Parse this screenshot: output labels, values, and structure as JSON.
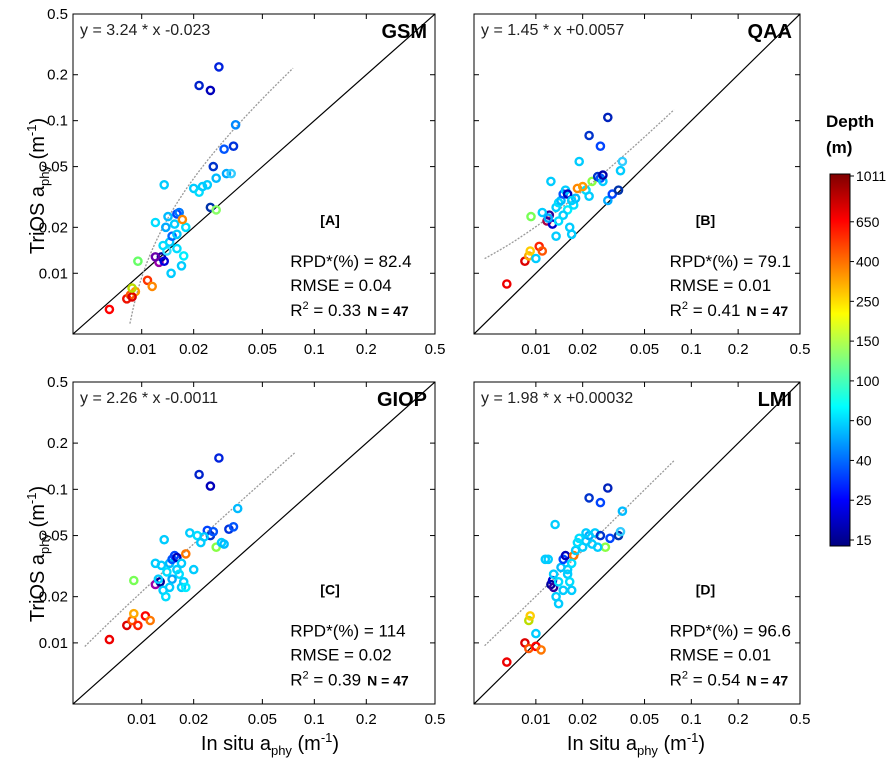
{
  "figure": {
    "y_axis_label": "TriOS a",
    "y_axis_sub": "phy",
    "x_axis_label": "In situ a",
    "x_axis_sub": "phy",
    "axis_unit_open": "(m",
    "axis_unit_exp": "-1",
    "axis_unit_close": ")",
    "colorbar_title_line1": "Depth",
    "colorbar_title_line2": "(m)",
    "colorbar_ticks": [
      "1011",
      "650",
      "400",
      "250",
      "150",
      "100",
      "60",
      "40",
      "25",
      "15"
    ],
    "colors": {
      "one_to_one": "#000000",
      "fit_line": "#999999",
      "colorbar_stops": [
        "#00007f",
        "#0000ff",
        "#007fff",
        "#00ffff",
        "#7fff7f",
        "#ffff00",
        "#ff7f00",
        "#ff0000",
        "#7f0000"
      ]
    }
  },
  "chart_data": [
    {
      "type": "scatter",
      "title": "GSM",
      "panel_label": "[A]",
      "equation": "y = 3.24 * x -0.023",
      "slope": 3.24,
      "intercept": -0.023,
      "xscale": "log",
      "yscale": "log",
      "xlim": [
        0.004,
        0.5
      ],
      "ylim": [
        0.004,
        0.5
      ],
      "x_ticks": [
        "0.01",
        "0.02",
        "0.05",
        "0.1",
        "0.2",
        "0.5"
      ],
      "y_ticks": [
        "0.5",
        "0.2",
        "0.1",
        "0.05",
        "0.02",
        "0.01"
      ],
      "stats": {
        "rpd_label": "RPD*(%) = 82.4",
        "rmse_label": "RMSE = 0.04",
        "r2_prefix": "R",
        "r2_sup": "2",
        "r2_value": " = 0.33",
        "n_label": "N = 47"
      },
      "points": [
        [
          0.0065,
          0.0058,
          "#ff0000"
        ],
        [
          0.0082,
          0.0068,
          "#ee1100"
        ],
        [
          0.0086,
          0.0072,
          "#ff5500"
        ],
        [
          0.0092,
          0.0076,
          "#ff9900"
        ],
        [
          0.0088,
          0.007,
          "#dd0000"
        ],
        [
          0.0108,
          0.009,
          "#ff3300"
        ],
        [
          0.0115,
          0.0082,
          "#ff8800"
        ],
        [
          0.0088,
          0.008,
          "#bbdd00"
        ],
        [
          0.0095,
          0.012,
          "#66ff66"
        ],
        [
          0.0126,
          0.0118,
          "#9900aa"
        ],
        [
          0.013,
          0.0128,
          "#000099"
        ],
        [
          0.0135,
          0.012,
          "#0000dd"
        ],
        [
          0.014,
          0.014,
          "#33ddff"
        ],
        [
          0.0145,
          0.016,
          "#00ccff"
        ],
        [
          0.0133,
          0.0152,
          "#00ddff"
        ],
        [
          0.015,
          0.0175,
          "#0066ff"
        ],
        [
          0.0138,
          0.02,
          "#00aaff"
        ],
        [
          0.0155,
          0.021,
          "#00ccff"
        ],
        [
          0.0142,
          0.0235,
          "#00bbff"
        ],
        [
          0.016,
          0.0245,
          "#0044ff"
        ],
        [
          0.0165,
          0.025,
          "#0077ff"
        ],
        [
          0.012,
          0.0215,
          "#00ddff"
        ],
        [
          0.0148,
          0.01,
          "#00ccff"
        ],
        [
          0.017,
          0.0112,
          "#00ccff"
        ],
        [
          0.0175,
          0.013,
          "#00eeff"
        ],
        [
          0.016,
          0.018,
          "#00ccff"
        ],
        [
          0.018,
          0.02,
          "#00ddff"
        ],
        [
          0.0172,
          0.0225,
          "#ff8800"
        ],
        [
          0.0135,
          0.038,
          "#00ccff"
        ],
        [
          0.02,
          0.036,
          "#00ccff"
        ],
        [
          0.0215,
          0.034,
          "#00ddff"
        ],
        [
          0.0225,
          0.037,
          "#00ccff"
        ],
        [
          0.024,
          0.038,
          "#00ccff"
        ],
        [
          0.025,
          0.027,
          "#0033aa"
        ],
        [
          0.027,
          0.026,
          "#88ff66"
        ],
        [
          0.027,
          0.042,
          "#00bbff"
        ],
        [
          0.031,
          0.045,
          "#00aaff"
        ],
        [
          0.026,
          0.05,
          "#0033cc"
        ],
        [
          0.03,
          0.065,
          "#0055ff"
        ],
        [
          0.034,
          0.068,
          "#0033dd"
        ],
        [
          0.033,
          0.045,
          "#33ccff"
        ],
        [
          0.035,
          0.094,
          "#0088ff"
        ],
        [
          0.0215,
          0.17,
          "#0022cc"
        ],
        [
          0.025,
          0.158,
          "#0000bb"
        ],
        [
          0.028,
          0.225,
          "#0022dd"
        ],
        [
          0.012,
          0.0128,
          "#6600aa"
        ],
        [
          0.016,
          0.0145,
          "#00ddff"
        ]
      ]
    },
    {
      "type": "scatter",
      "title": "QAA",
      "panel_label": "[B]",
      "equation": "y = 1.45 * x +0.0057",
      "slope": 1.45,
      "intercept": 0.0057,
      "xscale": "log",
      "yscale": "log",
      "xlim": [
        0.004,
        0.5
      ],
      "ylim": [
        0.004,
        0.5
      ],
      "x_ticks": [
        "0.01",
        "0.02",
        "0.05",
        "0.1",
        "0.2",
        "0.5"
      ],
      "y_ticks": [],
      "stats": {
        "rpd_label": "RPD*(%) = 79.1",
        "rmse_label": "RMSE = 0.01",
        "r2_prefix": "R",
        "r2_sup": "2",
        "r2_value": " = 0.41",
        "n_label": "N = 47"
      },
      "points": [
        [
          0.0065,
          0.0085,
          "#ee0000"
        ],
        [
          0.0085,
          0.012,
          "#dd0000"
        ],
        [
          0.009,
          0.013,
          "#ffaa00"
        ],
        [
          0.0092,
          0.014,
          "#ffcc00"
        ],
        [
          0.01,
          0.0125,
          "#00ccff"
        ],
        [
          0.0105,
          0.015,
          "#ff2200"
        ],
        [
          0.011,
          0.014,
          "#ff5500"
        ],
        [
          0.0093,
          0.0235,
          "#77ff55"
        ],
        [
          0.0118,
          0.022,
          "#aa0044"
        ],
        [
          0.0122,
          0.024,
          "#330099"
        ],
        [
          0.0128,
          0.021,
          "#0000cc"
        ],
        [
          0.011,
          0.025,
          "#00ccff"
        ],
        [
          0.0135,
          0.027,
          "#00ccff"
        ],
        [
          0.014,
          0.029,
          "#00ddff"
        ],
        [
          0.0145,
          0.03,
          "#00bbff"
        ],
        [
          0.015,
          0.033,
          "#0055ff"
        ],
        [
          0.0155,
          0.035,
          "#00ccff"
        ],
        [
          0.016,
          0.026,
          "#00eeff"
        ],
        [
          0.0165,
          0.02,
          "#00ccff"
        ],
        [
          0.017,
          0.018,
          "#00ccff"
        ],
        [
          0.0175,
          0.028,
          "#00ddff"
        ],
        [
          0.018,
          0.031,
          "#00bbff"
        ],
        [
          0.0185,
          0.036,
          "#ff8800"
        ],
        [
          0.0125,
          0.04,
          "#00ccff"
        ],
        [
          0.0135,
          0.0175,
          "#00ccff"
        ],
        [
          0.019,
          0.054,
          "#00ccff"
        ],
        [
          0.021,
          0.035,
          "#00ddff"
        ],
        [
          0.022,
          0.032,
          "#00ccff"
        ],
        [
          0.023,
          0.04,
          "#88ff44"
        ],
        [
          0.025,
          0.043,
          "#0033cc"
        ],
        [
          0.026,
          0.042,
          "#0055ff"
        ],
        [
          0.027,
          0.04,
          "#00ccff"
        ],
        [
          0.029,
          0.03,
          "#00aaff"
        ],
        [
          0.031,
          0.033,
          "#0044ff"
        ],
        [
          0.034,
          0.035,
          "#0033aa"
        ],
        [
          0.035,
          0.047,
          "#00ccff"
        ],
        [
          0.036,
          0.054,
          "#33ccff"
        ],
        [
          0.022,
          0.08,
          "#0033cc"
        ],
        [
          0.026,
          0.068,
          "#0044ff"
        ],
        [
          0.029,
          0.105,
          "#0022bb"
        ],
        [
          0.027,
          0.044,
          "#0000aa"
        ],
        [
          0.012,
          0.023,
          "#00aaff"
        ],
        [
          0.015,
          0.024,
          "#00ccff"
        ],
        [
          0.016,
          0.033,
          "#0000bb"
        ],
        [
          0.02,
          0.037,
          "#ff9900"
        ],
        [
          0.014,
          0.022,
          "#00ddff"
        ],
        [
          0.017,
          0.03,
          "#00ccff"
        ]
      ]
    },
    {
      "type": "scatter",
      "title": "GIOP",
      "panel_label": "[C]",
      "equation": "y = 2.26 * x -0.0011",
      "slope": 2.26,
      "intercept": -0.0011,
      "xscale": "log",
      "yscale": "log",
      "xlim": [
        0.004,
        0.5
      ],
      "ylim": [
        0.004,
        0.5
      ],
      "x_ticks": [
        "0.01",
        "0.02",
        "0.05",
        "0.1",
        "0.2",
        "0.5"
      ],
      "y_ticks": [
        "0.5",
        "0.2",
        "0.1",
        "0.05",
        "0.02",
        "0.01"
      ],
      "stats": {
        "rpd_label": "RPD*(%) = 114",
        "rmse_label": "RMSE = 0.02",
        "r2_prefix": "R",
        "r2_sup": "2",
        "r2_value": " = 0.39",
        "n_label": "N = 47"
      },
      "points": [
        [
          0.0065,
          0.0105,
          "#ee0000"
        ],
        [
          0.0082,
          0.013,
          "#dd0000"
        ],
        [
          0.0088,
          0.014,
          "#ff5500"
        ],
        [
          0.009,
          0.0155,
          "#ffaa00"
        ],
        [
          0.0095,
          0.013,
          "#ff2200"
        ],
        [
          0.0105,
          0.015,
          "#ff0000"
        ],
        [
          0.0112,
          0.014,
          "#ff7700"
        ],
        [
          0.009,
          0.0255,
          "#77ff55"
        ],
        [
          0.012,
          0.024,
          "#9900aa"
        ],
        [
          0.0128,
          0.025,
          "#000099"
        ],
        [
          0.0133,
          0.022,
          "#00ccff"
        ],
        [
          0.0138,
          0.02,
          "#00ddff"
        ],
        [
          0.013,
          0.032,
          "#00ccff"
        ],
        [
          0.0145,
          0.033,
          "#00bbff"
        ],
        [
          0.015,
          0.035,
          "#0055ff"
        ],
        [
          0.0155,
          0.037,
          "#0044ff"
        ],
        [
          0.016,
          0.03,
          "#00ccff"
        ],
        [
          0.0165,
          0.028,
          "#00ddff"
        ],
        [
          0.017,
          0.023,
          "#00ccff"
        ],
        [
          0.0175,
          0.025,
          "#00ccff"
        ],
        [
          0.018,
          0.038,
          "#ff7700"
        ],
        [
          0.0135,
          0.047,
          "#00ccff"
        ],
        [
          0.012,
          0.033,
          "#00ccff"
        ],
        [
          0.019,
          0.052,
          "#00ccff"
        ],
        [
          0.021,
          0.05,
          "#00ddff"
        ],
        [
          0.022,
          0.045,
          "#00ccff"
        ],
        [
          0.024,
          0.054,
          "#0044ff"
        ],
        [
          0.025,
          0.05,
          "#0033cc"
        ],
        [
          0.027,
          0.042,
          "#88ff44"
        ],
        [
          0.029,
          0.045,
          "#00ccff"
        ],
        [
          0.032,
          0.055,
          "#0033dd"
        ],
        [
          0.034,
          0.057,
          "#0055ff"
        ],
        [
          0.036,
          0.075,
          "#00bbff"
        ],
        [
          0.0215,
          0.125,
          "#0022cc"
        ],
        [
          0.025,
          0.105,
          "#0000bb"
        ],
        [
          0.028,
          0.16,
          "#0022dd"
        ],
        [
          0.015,
          0.026,
          "#00aaff"
        ],
        [
          0.016,
          0.036,
          "#0000bb"
        ],
        [
          0.014,
          0.029,
          "#00ddff"
        ],
        [
          0.017,
          0.033,
          "#00ccff"
        ],
        [
          0.023,
          0.049,
          "#00ccff"
        ],
        [
          0.02,
          0.03,
          "#00ccff"
        ],
        [
          0.0125,
          0.026,
          "#00ccff"
        ],
        [
          0.0145,
          0.023,
          "#00ccff"
        ],
        [
          0.018,
          0.023,
          "#00eeff"
        ],
        [
          0.026,
          0.053,
          "#0055ff"
        ],
        [
          0.03,
          0.044,
          "#00bbff"
        ]
      ]
    },
    {
      "type": "scatter",
      "title": "LMI",
      "panel_label": "[D]",
      "equation": "y = 1.98 * x +0.00032",
      "slope": 1.98,
      "intercept": 0.00032,
      "xscale": "log",
      "yscale": "log",
      "xlim": [
        0.004,
        0.5
      ],
      "ylim": [
        0.004,
        0.5
      ],
      "x_ticks": [
        "0.01",
        "0.02",
        "0.05",
        "0.1",
        "0.2",
        "0.5"
      ],
      "y_ticks": [],
      "stats": {
        "rpd_label": "RPD*(%) = 96.6",
        "rmse_label": "RMSE = 0.01",
        "r2_prefix": "R",
        "r2_sup": "2",
        "r2_value": " = 0.54",
        "n_label": "N = 47"
      },
      "points": [
        [
          0.0065,
          0.0075,
          "#ee0000"
        ],
        [
          0.0085,
          0.01,
          "#dd0000"
        ],
        [
          0.009,
          0.0092,
          "#ff5500"
        ],
        [
          0.01,
          0.0095,
          "#ff0000"
        ],
        [
          0.0108,
          0.009,
          "#ff7700"
        ],
        [
          0.009,
          0.014,
          "#bbdd00"
        ],
        [
          0.0092,
          0.015,
          "#ffcc00"
        ],
        [
          0.01,
          0.0115,
          "#00ccff"
        ],
        [
          0.0115,
          0.035,
          "#00ccff"
        ],
        [
          0.0125,
          0.024,
          "#000099"
        ],
        [
          0.0128,
          0.0255,
          "#0000cc"
        ],
        [
          0.013,
          0.023,
          "#330099"
        ],
        [
          0.0135,
          0.02,
          "#00ccff"
        ],
        [
          0.014,
          0.025,
          "#00ddff"
        ],
        [
          0.0145,
          0.031,
          "#00bbff"
        ],
        [
          0.015,
          0.035,
          "#0044ff"
        ],
        [
          0.0155,
          0.037,
          "#0000bb"
        ],
        [
          0.016,
          0.028,
          "#00ccff"
        ],
        [
          0.0165,
          0.025,
          "#00ddff"
        ],
        [
          0.017,
          0.022,
          "#00ccff"
        ],
        [
          0.0175,
          0.037,
          "#ff7700"
        ],
        [
          0.0133,
          0.059,
          "#00ccff"
        ],
        [
          0.018,
          0.04,
          "#00ccff"
        ],
        [
          0.019,
          0.048,
          "#00ddff"
        ],
        [
          0.02,
          0.042,
          "#00ccff"
        ],
        [
          0.021,
          0.046,
          "#00ccff"
        ],
        [
          0.022,
          0.05,
          "#00aaff"
        ],
        [
          0.024,
          0.052,
          "#00ccff"
        ],
        [
          0.026,
          0.05,
          "#0033cc"
        ],
        [
          0.028,
          0.042,
          "#88ff44"
        ],
        [
          0.03,
          0.048,
          "#0044ff"
        ],
        [
          0.034,
          0.05,
          "#0033aa"
        ],
        [
          0.035,
          0.053,
          "#33ccff"
        ],
        [
          0.036,
          0.072,
          "#00bbff"
        ],
        [
          0.022,
          0.088,
          "#0033cc"
        ],
        [
          0.026,
          0.082,
          "#0044ff"
        ],
        [
          0.029,
          0.102,
          "#0022bb"
        ],
        [
          0.015,
          0.022,
          "#00ccff"
        ],
        [
          0.016,
          0.03,
          "#00ccff"
        ],
        [
          0.012,
          0.035,
          "#00ccff"
        ],
        [
          0.014,
          0.018,
          "#00ccff"
        ],
        [
          0.0185,
          0.045,
          "#00ddff"
        ],
        [
          0.023,
          0.044,
          "#00ccff"
        ],
        [
          0.025,
          0.042,
          "#00ccff"
        ],
        [
          0.017,
          0.033,
          "#00ddff"
        ],
        [
          0.021,
          0.052,
          "#00ccff"
        ],
        [
          0.013,
          0.028,
          "#00ccff"
        ]
      ]
    }
  ]
}
